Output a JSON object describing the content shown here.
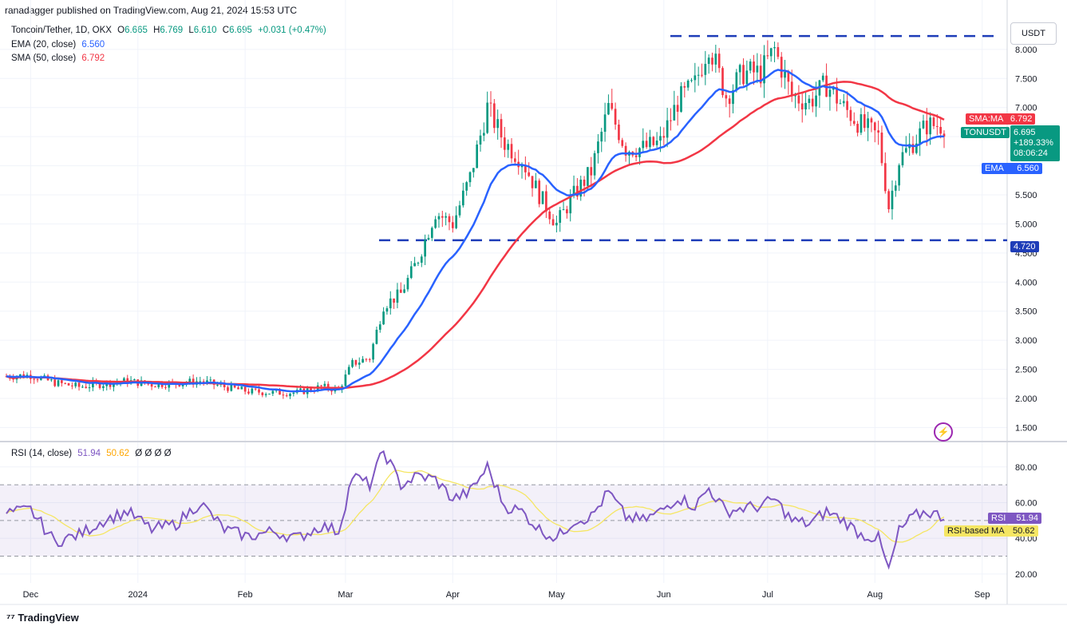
{
  "header": {
    "published": "ranadagger published on TradingView.com, Aug 21, 2024 15:53 UTC"
  },
  "legend": {
    "symbol": "Toncoin/Tether, 1D, OKX",
    "o_label": "O",
    "o": "6.665",
    "h_label": "H",
    "h": "6.769",
    "l_label": "L",
    "l": "6.610",
    "c_label": "C",
    "c": "6.695",
    "change": "+0.031 (+0.47%)",
    "ema_label": "EMA (20, close)",
    "ema": "6.560",
    "sma_label": "SMA (50, close)",
    "sma": "6.792"
  },
  "currency_button": "USDT",
  "price_labels": {
    "sma_tag": "SMA:MA",
    "sma_val": "6.792",
    "ticker": "TONUSDT",
    "price": "6.695",
    "pct": "+189.33%",
    "countdown": "08:06:24",
    "ema_tag": "EMA",
    "ema_val": "6.560",
    "support": "4.720"
  },
  "rsi": {
    "label": "RSI (14, close)",
    "val": "51.94",
    "ma": "50.62",
    "extra": "Ø Ø Ø Ø",
    "tag_rsi": "RSI",
    "tag_ma": "RSI-based MA"
  },
  "footer": {
    "brand": "TradingView"
  },
  "colors": {
    "up": "#089981",
    "down": "#f23645",
    "ema": "#2962ff",
    "sma": "#f23645",
    "rsi": "#7e57c2",
    "rsi_ma": "#f5e663",
    "level": "#1e3db8"
  },
  "chart_data": [
    {
      "type": "candlestick",
      "title": "Toncoin/Tether, 1D, OKX",
      "ylabel": "USDT",
      "ylim": [
        1.3,
        8.3
      ],
      "x_ticks": [
        "Dec",
        "2024",
        "Feb",
        "Mar",
        "Apr",
        "May",
        "Jun",
        "Jul",
        "Aug",
        "Sep"
      ],
      "y_ticks": [
        "1.500",
        "2.000",
        "2.500",
        "3.000",
        "3.500",
        "4.000",
        "4.500",
        "5.000",
        "5.500",
        "6.000",
        "6.500",
        "7.000",
        "7.500",
        "8.000"
      ],
      "horizontal_levels": [
        {
          "value": 8.23,
          "style": "dashed"
        },
        {
          "value": 4.72,
          "style": "dashed",
          "label": "4.720"
        }
      ],
      "close_points": [
        [
          "Nov 24",
          2.38
        ],
        [
          "Dec 1",
          2.4
        ],
        [
          "Dec 8",
          2.27
        ],
        [
          "Dec 15",
          2.2
        ],
        [
          "Dec 22",
          2.25
        ],
        [
          "Dec 29",
          2.3
        ],
        [
          "Jan 5",
          2.24
        ],
        [
          "Jan 12",
          2.26
        ],
        [
          "Jan 19",
          2.3
        ],
        [
          "Jan 26",
          2.2
        ],
        [
          "Feb 2",
          2.12
        ],
        [
          "Feb 9",
          2.1
        ],
        [
          "Feb 16",
          2.1
        ],
        [
          "Feb 23",
          2.2
        ],
        [
          "Feb 28",
          2.15
        ],
        [
          "Mar 3",
          2.6
        ],
        [
          "Mar 8",
          2.7
        ],
        [
          "Mar 12",
          3.6
        ],
        [
          "Mar 17",
          3.8
        ],
        [
          "Mar 22",
          4.4
        ],
        [
          "Mar 27",
          5.2
        ],
        [
          "Apr 1",
          5.0
        ],
        [
          "Apr 6",
          5.8
        ],
        [
          "Apr 11",
          7.0
        ],
        [
          "Apr 16",
          6.4
        ],
        [
          "Apr 21",
          6.1
        ],
        [
          "Apr 26",
          5.5
        ],
        [
          "May 1",
          5.0
        ],
        [
          "May 6",
          5.5
        ],
        [
          "May 11",
          5.9
        ],
        [
          "May 16",
          7.0
        ],
        [
          "May 21",
          6.3
        ],
        [
          "May 26",
          6.3
        ],
        [
          "May 31",
          6.4
        ],
        [
          "Jun 5",
          7.1
        ],
        [
          "Jun 10",
          7.4
        ],
        [
          "Jun 14",
          8.1
        ],
        [
          "Jun 19",
          7.2
        ],
        [
          "Jun 24",
          7.6
        ],
        [
          "Jun 29",
          7.6
        ],
        [
          "Jul 3",
          8.0
        ],
        [
          "Jul 8",
          7.2
        ],
        [
          "Jul 13",
          7.1
        ],
        [
          "Jul 18",
          7.4
        ],
        [
          "Jul 23",
          7.0
        ],
        [
          "Jul 28",
          6.7
        ],
        [
          "Aug 2",
          6.5
        ],
        [
          "Aug 5",
          5.3
        ],
        [
          "Aug 8",
          6.1
        ],
        [
          "Aug 12",
          6.4
        ],
        [
          "Aug 16",
          6.7
        ],
        [
          "Aug 21",
          6.695
        ]
      ],
      "series": [
        {
          "name": "EMA (20, close)",
          "last": 6.56
        },
        {
          "name": "SMA (50, close)",
          "last": 6.792
        }
      ]
    },
    {
      "type": "line",
      "title": "RSI (14, close)",
      "ylim": [
        15,
        92
      ],
      "y_ticks": [
        "20.00",
        "40.00",
        "60.00",
        "80.00"
      ],
      "bands": [
        30,
        50,
        70
      ],
      "points": [
        [
          "Nov 24",
          54
        ],
        [
          "Dec 1",
          56
        ],
        [
          "Dec 8",
          38
        ],
        [
          "Dec 15",
          42
        ],
        [
          "Dec 22",
          50
        ],
        [
          "Dec 29",
          55
        ],
        [
          "Jan 5",
          45
        ],
        [
          "Jan 12",
          48
        ],
        [
          "Jan 19",
          60
        ],
        [
          "Jan 26",
          45
        ],
        [
          "Feb 2",
          41
        ],
        [
          "Feb 9",
          44
        ],
        [
          "Feb 16",
          40
        ],
        [
          "Feb 23",
          47
        ],
        [
          "Feb 28",
          44
        ],
        [
          "Mar 3",
          75
        ],
        [
          "Mar 8",
          70
        ],
        [
          "Mar 12",
          89
        ],
        [
          "Mar 17",
          70
        ],
        [
          "Mar 22",
          75
        ],
        [
          "Mar 27",
          73
        ],
        [
          "Apr 1",
          62
        ],
        [
          "Apr 6",
          66
        ],
        [
          "Apr 11",
          80
        ],
        [
          "Apr 16",
          58
        ],
        [
          "Apr 21",
          55
        ],
        [
          "Apr 26",
          45
        ],
        [
          "May 1",
          40
        ],
        [
          "May 6",
          50
        ],
        [
          "May 11",
          52
        ],
        [
          "May 16",
          66
        ],
        [
          "May 21",
          52
        ],
        [
          "May 26",
          50
        ],
        [
          "May 31",
          55
        ],
        [
          "Jun 5",
          63
        ],
        [
          "Jun 10",
          58
        ],
        [
          "Jun 14",
          68
        ],
        [
          "Jun 19",
          55
        ],
        [
          "Jun 24",
          57
        ],
        [
          "Jun 29",
          58
        ],
        [
          "Jul 3",
          62
        ],
        [
          "Jul 8",
          50
        ],
        [
          "Jul 13",
          48
        ],
        [
          "Jul 18",
          55
        ],
        [
          "Jul 23",
          50
        ],
        [
          "Jul 28",
          42
        ],
        [
          "Aug 2",
          40
        ],
        [
          "Aug 5",
          22
        ],
        [
          "Aug 8",
          44
        ],
        [
          "Aug 12",
          52
        ],
        [
          "Aug 16",
          55
        ],
        [
          "Aug 21",
          51.94
        ]
      ],
      "series": [
        {
          "name": "RSI",
          "last": 51.94
        },
        {
          "name": "RSI-based MA",
          "last": 50.62
        }
      ]
    }
  ]
}
